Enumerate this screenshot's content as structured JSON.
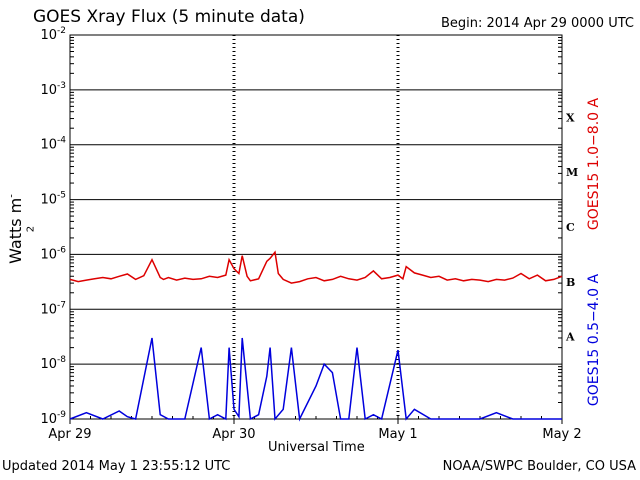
{
  "header": {
    "title": "GOES Xray Flux (5 minute data)",
    "begin": "Begin:  2014 Apr 29 0000 UTC"
  },
  "footer": {
    "updated": "Updated 2014 May  1 23:55:12 UTC",
    "credit": "NOAA/SWPC Boulder, CO USA"
  },
  "colors": {
    "long": "#dd0000",
    "short": "#0000dd",
    "grid": "#000000"
  },
  "chart_data": {
    "type": "line",
    "title": "GOES Xray Flux (5 minute data)",
    "xlabel": "Universal Time",
    "ylabel": "Watts m",
    "ylabel_sup": "-2",
    "yscale": "log",
    "ylim": [
      1e-09,
      0.01
    ],
    "xlim": [
      "2014-04-29 00:00",
      "2014-05-02 00:00"
    ],
    "x_ticks": [
      {
        "label": "Apr 29",
        "day": 0
      },
      {
        "label": "Apr 30",
        "day": 1
      },
      {
        "label": "May 1",
        "day": 2
      },
      {
        "label": "May 2",
        "day": 3
      }
    ],
    "y_ticks": [
      {
        "base": "10",
        "exp": "-9",
        "value": 1e-09
      },
      {
        "base": "10",
        "exp": "-8",
        "value": 1e-08
      },
      {
        "base": "10",
        "exp": "-7",
        "value": 1e-07
      },
      {
        "base": "10",
        "exp": "-6",
        "value": 1e-06
      },
      {
        "base": "10",
        "exp": "-5",
        "value": 1e-05
      },
      {
        "base": "10",
        "exp": "-4",
        "value": 0.0001
      },
      {
        "base": "10",
        "exp": "-3",
        "value": 0.001
      },
      {
        "base": "10",
        "exp": "-2",
        "value": 0.01
      }
    ],
    "flare_classes": [
      {
        "label": "A",
        "value": 3.16e-08
      },
      {
        "label": "B",
        "value": 3.16e-07
      },
      {
        "label": "C",
        "value": 3.16e-06
      },
      {
        "label": "M",
        "value": 3.16e-05
      },
      {
        "label": "X",
        "value": 0.000316
      }
    ],
    "series": [
      {
        "name": "GOES15 1.0−8.0 A",
        "x": [
          0,
          0.05,
          0.1,
          0.15,
          0.2,
          0.25,
          0.3,
          0.35,
          0.4,
          0.45,
          0.5,
          0.55,
          0.57,
          0.6,
          0.65,
          0.7,
          0.75,
          0.8,
          0.85,
          0.9,
          0.95,
          0.97,
          1.0,
          1.03,
          1.05,
          1.08,
          1.1,
          1.15,
          1.2,
          1.22,
          1.25,
          1.27,
          1.3,
          1.35,
          1.4,
          1.45,
          1.5,
          1.55,
          1.6,
          1.65,
          1.7,
          1.75,
          1.8,
          1.85,
          1.9,
          1.95,
          2.0,
          2.03,
          2.05,
          2.1,
          2.15,
          2.2,
          2.25,
          2.3,
          2.35,
          2.4,
          2.45,
          2.5,
          2.55,
          2.6,
          2.65,
          2.7,
          2.75,
          2.8,
          2.85,
          2.9,
          2.95,
          3.0
        ],
        "values": [
          3.5e-07,
          3.2e-07,
          3.4e-07,
          3.6e-07,
          3.8e-07,
          3.6e-07,
          4e-07,
          4.4e-07,
          3.5e-07,
          4.1e-07,
          8e-07,
          3.8e-07,
          3.5e-07,
          3.8e-07,
          3.4e-07,
          3.7e-07,
          3.5e-07,
          3.6e-07,
          4e-07,
          3.8e-07,
          4.2e-07,
          8e-07,
          5.5e-07,
          4.5e-07,
          9.5e-07,
          4e-07,
          3.3e-07,
          3.6e-07,
          7.5e-07,
          8.5e-07,
          1.1e-06,
          4.5e-07,
          3.5e-07,
          3e-07,
          3.2e-07,
          3.6e-07,
          3.8e-07,
          3.3e-07,
          3.5e-07,
          4e-07,
          3.6e-07,
          3.4e-07,
          3.8e-07,
          5e-07,
          3.6e-07,
          3.8e-07,
          4.2e-07,
          3.6e-07,
          6e-07,
          4.6e-07,
          4.2e-07,
          3.8e-07,
          4e-07,
          3.4e-07,
          3.6e-07,
          3.3e-07,
          3.5e-07,
          3.4e-07,
          3.2e-07,
          3.5e-07,
          3.4e-07,
          3.7e-07,
          4.5e-07,
          3.6e-07,
          4.2e-07,
          3.3e-07,
          3.5e-07,
          4e-07
        ]
      },
      {
        "name": "GOES15 0.5−4.0 A",
        "x": [
          0,
          0.1,
          0.2,
          0.3,
          0.35,
          0.4,
          0.5,
          0.55,
          0.6,
          0.7,
          0.8,
          0.85,
          0.9,
          0.95,
          0.97,
          1.0,
          1.03,
          1.05,
          1.1,
          1.15,
          1.2,
          1.22,
          1.25,
          1.3,
          1.35,
          1.4,
          1.5,
          1.55,
          1.6,
          1.65,
          1.7,
          1.75,
          1.8,
          1.85,
          1.9,
          2.0,
          2.05,
          2.1,
          2.2,
          2.3,
          2.4,
          2.5,
          2.6,
          2.7,
          2.75,
          2.8,
          2.85,
          2.9,
          2.95,
          3.0
        ],
        "values": [
          1e-09,
          1.3e-09,
          1e-09,
          1.4e-09,
          1.1e-09,
          1e-09,
          3e-08,
          1.2e-09,
          1e-09,
          1e-09,
          2e-08,
          1e-09,
          1.2e-09,
          1e-09,
          2e-08,
          1.5e-09,
          1.1e-09,
          3e-08,
          1e-09,
          1.2e-09,
          6e-09,
          2e-08,
          1e-09,
          1.5e-09,
          2e-08,
          1e-09,
          4e-09,
          1e-08,
          7e-09,
          1e-09,
          1e-09,
          2e-08,
          1e-09,
          1.2e-09,
          1e-09,
          1.8e-08,
          1e-09,
          1.5e-09,
          1e-09,
          1e-09,
          1e-09,
          1e-09,
          1.3e-09,
          1e-09,
          1e-09,
          1e-09,
          1e-09,
          1e-09,
          1e-09,
          1e-09
        ]
      }
    ]
  }
}
